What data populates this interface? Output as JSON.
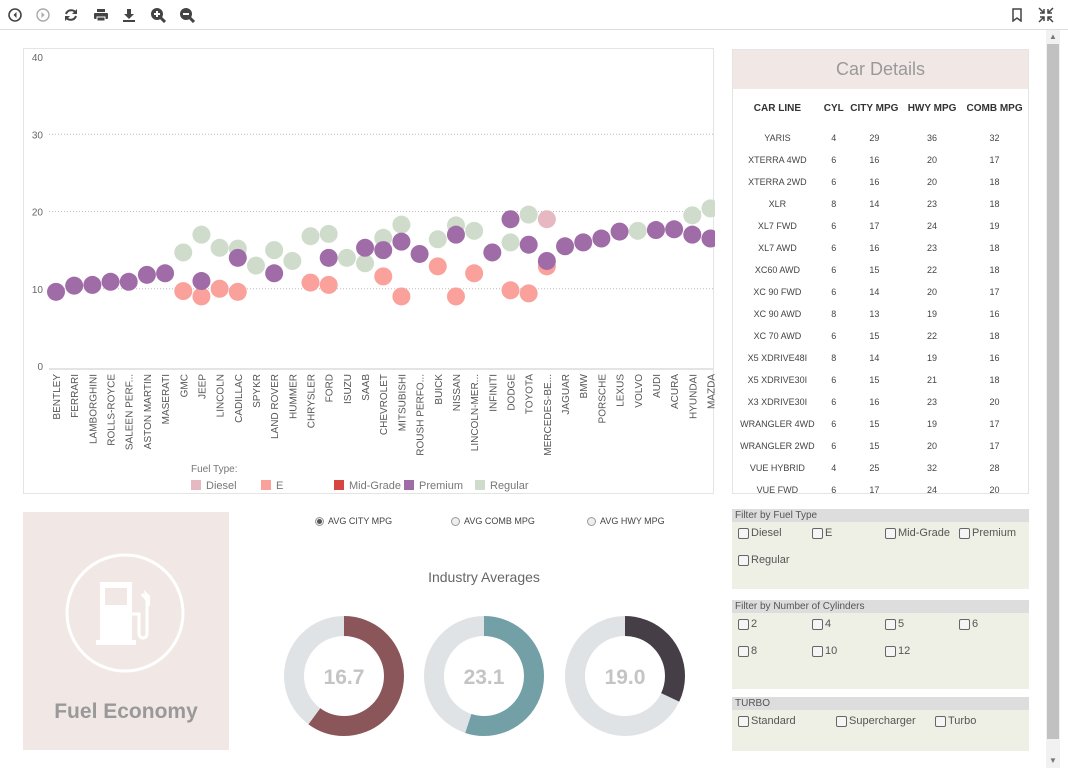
{
  "toolbar": {
    "icons": [
      "back-icon",
      "forward-icon",
      "refresh-icon",
      "print-icon",
      "download-icon",
      "zoom-in-icon",
      "zoom-out-icon",
      "bookmark-icon",
      "collapse-icon"
    ]
  },
  "chart_data": {
    "type": "scatter",
    "ylim": [
      0,
      40
    ],
    "yticks": [
      "0",
      "10",
      "20",
      "30",
      "40"
    ],
    "grid": true,
    "categories": [
      "BENTLEY",
      "FERRARI",
      "LAMBORGHINI",
      "ROLLS-ROYCE",
      "SALEEN PERF...",
      "ASTON MARTIN",
      "MASERATI",
      "GMC",
      "JEEP",
      "LINCOLN",
      "CADILLAC",
      "SPYKR",
      "LAND ROVER",
      "HUMMER",
      "CHRYSLER",
      "FORD",
      "ISUZU",
      "SAAB",
      "CHEVROLET",
      "MITSUBISHI",
      "ROUSH PERFO...",
      "BUICK",
      "NISSAN",
      "LINCOLN-MER...",
      "INFINITI",
      "DODGE",
      "TOYOTA",
      "MERCEDES-BE...",
      "JAGUAR",
      "BMW",
      "PORSCHE",
      "LEXUS",
      "VOLVO",
      "AUDI",
      "ACURA",
      "HYUNDAI",
      "MAZDA"
    ],
    "legend_title": "Fuel Type:",
    "legend_placement": "bottom",
    "series": [
      {
        "name": "Diesel",
        "color": "#e5b8c2",
        "points": [
          [
            "MERCEDES-BE...",
            19.0
          ]
        ]
      },
      {
        "name": "E",
        "color": "#f9a19a",
        "points": [
          [
            "GMC",
            9.7
          ],
          [
            "JEEP",
            9.0
          ],
          [
            "LINCOLN",
            10.0
          ],
          [
            "CADILLAC",
            9.6
          ],
          [
            "CHRYSLER",
            10.8
          ],
          [
            "FORD",
            10.5
          ],
          [
            "CHEVROLET",
            11.6
          ],
          [
            "MITSUBISHI",
            9.0
          ],
          [
            "BUICK",
            12.9
          ],
          [
            "NISSAN",
            9.0
          ],
          [
            "LINCOLN-MER...",
            12.0
          ],
          [
            "DODGE",
            9.8
          ],
          [
            "TOYOTA",
            9.4
          ],
          [
            "MERCEDES-BE...",
            12.9
          ]
        ]
      },
      {
        "name": "Mid-Grade",
        "color": "#d64541",
        "points": []
      },
      {
        "name": "Regular",
        "color": "#cfdccc",
        "points": [
          [
            "GMC",
            14.7
          ],
          [
            "JEEP",
            17.0
          ],
          [
            "LINCOLN",
            15.3
          ],
          [
            "CADILLAC",
            15.2
          ],
          [
            "SPYKR",
            13.0
          ],
          [
            "LAND ROVER",
            15.0
          ],
          [
            "HUMMER",
            13.6
          ],
          [
            "CHRYSLER",
            16.8
          ],
          [
            "FORD",
            17.1
          ],
          [
            "ISUZU",
            14.0
          ],
          [
            "SAAB",
            13.3
          ],
          [
            "CHEVROLET",
            16.6
          ],
          [
            "MITSUBISHI",
            18.3
          ],
          [
            "BUICK",
            16.4
          ],
          [
            "NISSAN",
            18.2
          ],
          [
            "LINCOLN-MER...",
            17.5
          ],
          [
            "DODGE",
            16.0
          ],
          [
            "TOYOTA",
            19.6
          ],
          [
            "VOLVO",
            17.5
          ],
          [
            "HYUNDAI",
            19.5
          ],
          [
            "MAZDA",
            20.4
          ]
        ]
      },
      {
        "name": "Premium",
        "color": "#a06ca8",
        "points": [
          [
            "BENTLEY",
            9.6
          ],
          [
            "FERRARI",
            10.4
          ],
          [
            "LAMBORGHINI",
            10.5
          ],
          [
            "ROLLS-ROYCE",
            10.9
          ],
          [
            "SALEEN PERF...",
            10.9
          ],
          [
            "ASTON MARTIN",
            11.8
          ],
          [
            "MASERATI",
            12.0
          ],
          [
            "JEEP",
            11.0
          ],
          [
            "CADILLAC",
            14.0
          ],
          [
            "LAND ROVER",
            12.0
          ],
          [
            "FORD",
            14.0
          ],
          [
            "SAAB",
            15.3
          ],
          [
            "CHEVROLET",
            15.0
          ],
          [
            "MITSUBISHI",
            16.1
          ],
          [
            "ROUSH PERFO...",
            14.5
          ],
          [
            "NISSAN",
            17.0
          ],
          [
            "INFINITI",
            14.7
          ],
          [
            "DODGE",
            19.0
          ],
          [
            "TOYOTA",
            15.7
          ],
          [
            "MERCEDES-BE...",
            13.6
          ],
          [
            "JAGUAR",
            15.5
          ],
          [
            "BMW",
            16.0
          ],
          [
            "PORSCHE",
            16.5
          ],
          [
            "LEXUS",
            17.4
          ],
          [
            "AUDI",
            17.6
          ],
          [
            "ACURA",
            17.7
          ],
          [
            "HYUNDAI",
            17.0
          ],
          [
            "MAZDA",
            16.5
          ]
        ]
      }
    ],
    "legend_order": [
      "Diesel",
      "E",
      "Mid-Grade",
      "Premium",
      "Regular"
    ]
  },
  "details": {
    "title": "Car Details",
    "columns": [
      "CAR LINE",
      "CYL",
      "CITY MPG",
      "HWY MPG",
      "COMB MPG"
    ],
    "rows": [
      [
        "YARIS",
        "4",
        "29",
        "36",
        "32"
      ],
      [
        "XTERRA 4WD",
        "6",
        "16",
        "20",
        "17"
      ],
      [
        "XTERRA 2WD",
        "6",
        "16",
        "20",
        "18"
      ],
      [
        "XLR",
        "8",
        "14",
        "23",
        "18"
      ],
      [
        "XL7 FWD",
        "6",
        "17",
        "24",
        "19"
      ],
      [
        "XL7 AWD",
        "6",
        "16",
        "23",
        "18"
      ],
      [
        "XC60 AWD",
        "6",
        "15",
        "22",
        "18"
      ],
      [
        "XC 90 FWD",
        "6",
        "14",
        "20",
        "17"
      ],
      [
        "XC 90 AWD",
        "8",
        "13",
        "19",
        "16"
      ],
      [
        "XC 70 AWD",
        "6",
        "15",
        "22",
        "18"
      ],
      [
        "X5 XDRIVE48I",
        "8",
        "14",
        "19",
        "16"
      ],
      [
        "X5 XDRIVE30I",
        "6",
        "15",
        "21",
        "18"
      ],
      [
        "X3 XDRIVE30I",
        "6",
        "16",
        "23",
        "20"
      ],
      [
        "WRANGLER 4WD",
        "6",
        "15",
        "19",
        "17"
      ],
      [
        "WRANGLER 2WD",
        "6",
        "15",
        "20",
        "17"
      ],
      [
        "VUE HYBRID",
        "4",
        "25",
        "32",
        "28"
      ],
      [
        "VUE FWD",
        "6",
        "17",
        "24",
        "20"
      ]
    ]
  },
  "filters": [
    {
      "title": "Filter by Fuel Type",
      "options": [
        "Diesel",
        "E",
        "Mid-Grade",
        "Premium",
        "Regular"
      ]
    },
    {
      "title": "Filter by Number of Cylinders",
      "options": [
        "2",
        "4",
        "5",
        "6",
        "8",
        "10",
        "12"
      ]
    },
    {
      "title": "TURBO",
      "options": [
        "Standard",
        "Supercharger",
        "Turbo"
      ]
    }
  ],
  "fuel_box": {
    "title": "Fuel Economy",
    "icon": "fuel-pump-icon"
  },
  "radios": [
    {
      "label": "AVG CITY MPG",
      "selected": true
    },
    {
      "label": "AVG COMB MPG",
      "selected": false
    },
    {
      "label": "AVG HWY MPG",
      "selected": false
    }
  ],
  "averages": {
    "title": "Industry Averages",
    "gauges": [
      {
        "value": "16.7",
        "fill": 0.6,
        "color": "#8b5659"
      },
      {
        "value": "23.1",
        "fill": 0.55,
        "color": "#72a0a6"
      },
      {
        "value": "19.0",
        "fill": 0.32,
        "color": "#453e46"
      }
    ],
    "track_color": "#e0e3e5"
  }
}
